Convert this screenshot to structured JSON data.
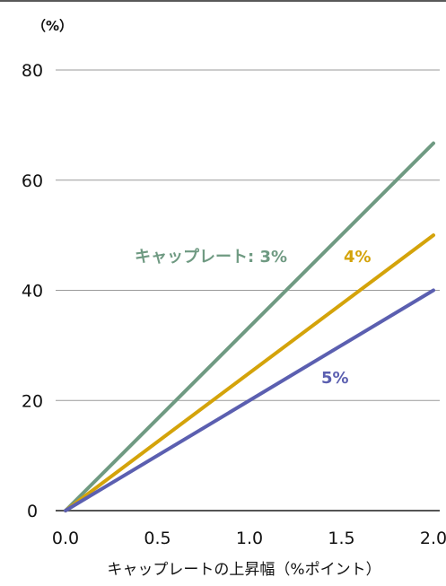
{
  "chart_data": {
    "type": "line",
    "y_unit_label": "（%）",
    "xlabel": "キャップレートの上昇幅（%ポイント）",
    "xlim": [
      0,
      2.0
    ],
    "ylim": [
      0,
      80
    ],
    "x_ticks": [
      "0.0",
      "0.5",
      "1.0",
      "1.5",
      "2.0"
    ],
    "y_ticks": [
      "0",
      "20",
      "40",
      "60",
      "80"
    ],
    "grid": "horizontal",
    "series": [
      {
        "name": "3%",
        "label": "キャップレート: 3%",
        "color": "#6f9a82",
        "x": [
          0,
          2.0
        ],
        "y": [
          0,
          66.7
        ]
      },
      {
        "name": "4%",
        "label": "4%",
        "color": "#d4a30a",
        "x": [
          0,
          2.0
        ],
        "y": [
          0,
          50
        ]
      },
      {
        "name": "5%",
        "label": "5%",
        "color": "#5b5fb0",
        "x": [
          0,
          2.0
        ],
        "y": [
          0,
          40
        ]
      }
    ]
  }
}
